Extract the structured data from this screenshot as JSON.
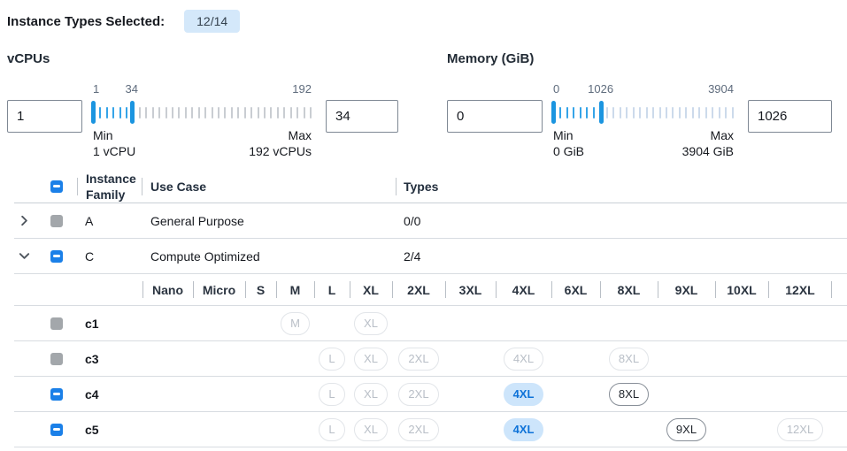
{
  "header": {
    "title": "Instance Types Selected:",
    "badge": "12/14"
  },
  "filters": {
    "vcpus": {
      "label": "vCPUs",
      "min_value": "1",
      "max_value": "34",
      "slider": {
        "start": "1",
        "current": "34",
        "end": "192",
        "fraction": 0.177
      },
      "min_label": "Min",
      "min_detail": "1 vCPU",
      "max_label": "Max",
      "max_detail": "192 vCPUs"
    },
    "memory": {
      "label": "Memory (GiB)",
      "min_value": "0",
      "max_value": "1026",
      "slider": {
        "start": "0",
        "current": "1026",
        "end": "3904",
        "fraction": 0.263
      },
      "min_label": "Min",
      "min_detail": "0 GiB",
      "max_label": "Max",
      "max_detail": "3904 GiB"
    }
  },
  "table": {
    "columns": {
      "family": "Instance Family",
      "use_case": "Use Case",
      "types": "Types"
    },
    "select_all_state": "indeterminate",
    "family_groups": [
      {
        "letter": "A",
        "use_case": "General Purpose",
        "types": "0/0",
        "checkbox": "disabled",
        "expanded": false
      },
      {
        "letter": "C",
        "use_case": "Compute Optimized",
        "types": "2/4",
        "checkbox": "indeterminate",
        "expanded": true
      }
    ],
    "size_columns": [
      "Nano",
      "Micro",
      "S",
      "M",
      "L",
      "XL",
      "2XL",
      "3XL",
      "4XL",
      "6XL",
      "8XL",
      "9XL",
      "10XL",
      "12XL"
    ],
    "instance_rows": [
      {
        "name": "c1",
        "checkbox": "disabled",
        "pills": [
          {
            "label": "M",
            "state": "disabled"
          },
          {
            "label": "XL",
            "state": "disabled"
          }
        ]
      },
      {
        "name": "c3",
        "checkbox": "disabled",
        "pills": [
          {
            "label": "L",
            "state": "disabled"
          },
          {
            "label": "XL",
            "state": "disabled"
          },
          {
            "label": "2XL",
            "state": "disabled"
          },
          {
            "label": "4XL",
            "state": "disabled"
          },
          {
            "label": "8XL",
            "state": "disabled"
          }
        ]
      },
      {
        "name": "c4",
        "checkbox": "indeterminate",
        "pills": [
          {
            "label": "L",
            "state": "disabled"
          },
          {
            "label": "XL",
            "state": "disabled"
          },
          {
            "label": "2XL",
            "state": "disabled"
          },
          {
            "label": "4XL",
            "state": "selected"
          },
          {
            "label": "8XL",
            "state": "available"
          }
        ]
      },
      {
        "name": "c5",
        "checkbox": "indeterminate",
        "pills": [
          {
            "label": "L",
            "state": "disabled"
          },
          {
            "label": "XL",
            "state": "disabled"
          },
          {
            "label": "2XL",
            "state": "disabled"
          },
          {
            "label": "4XL",
            "state": "selected"
          },
          {
            "label": "9XL",
            "state": "available"
          },
          {
            "label": "12XL",
            "state": "disabled"
          }
        ]
      }
    ]
  },
  "colors": {
    "accent_blue": "#1b80e8",
    "slider_active_blue": "#35a4e8",
    "slider_handle_blue": "#1b95e0",
    "badge_bg": "#d4e8fa",
    "selected_pill_bg": "#cde5fb",
    "selected_pill_text": "#0d72d8",
    "disabled_checkbox_gray": "#a3a7ab"
  }
}
